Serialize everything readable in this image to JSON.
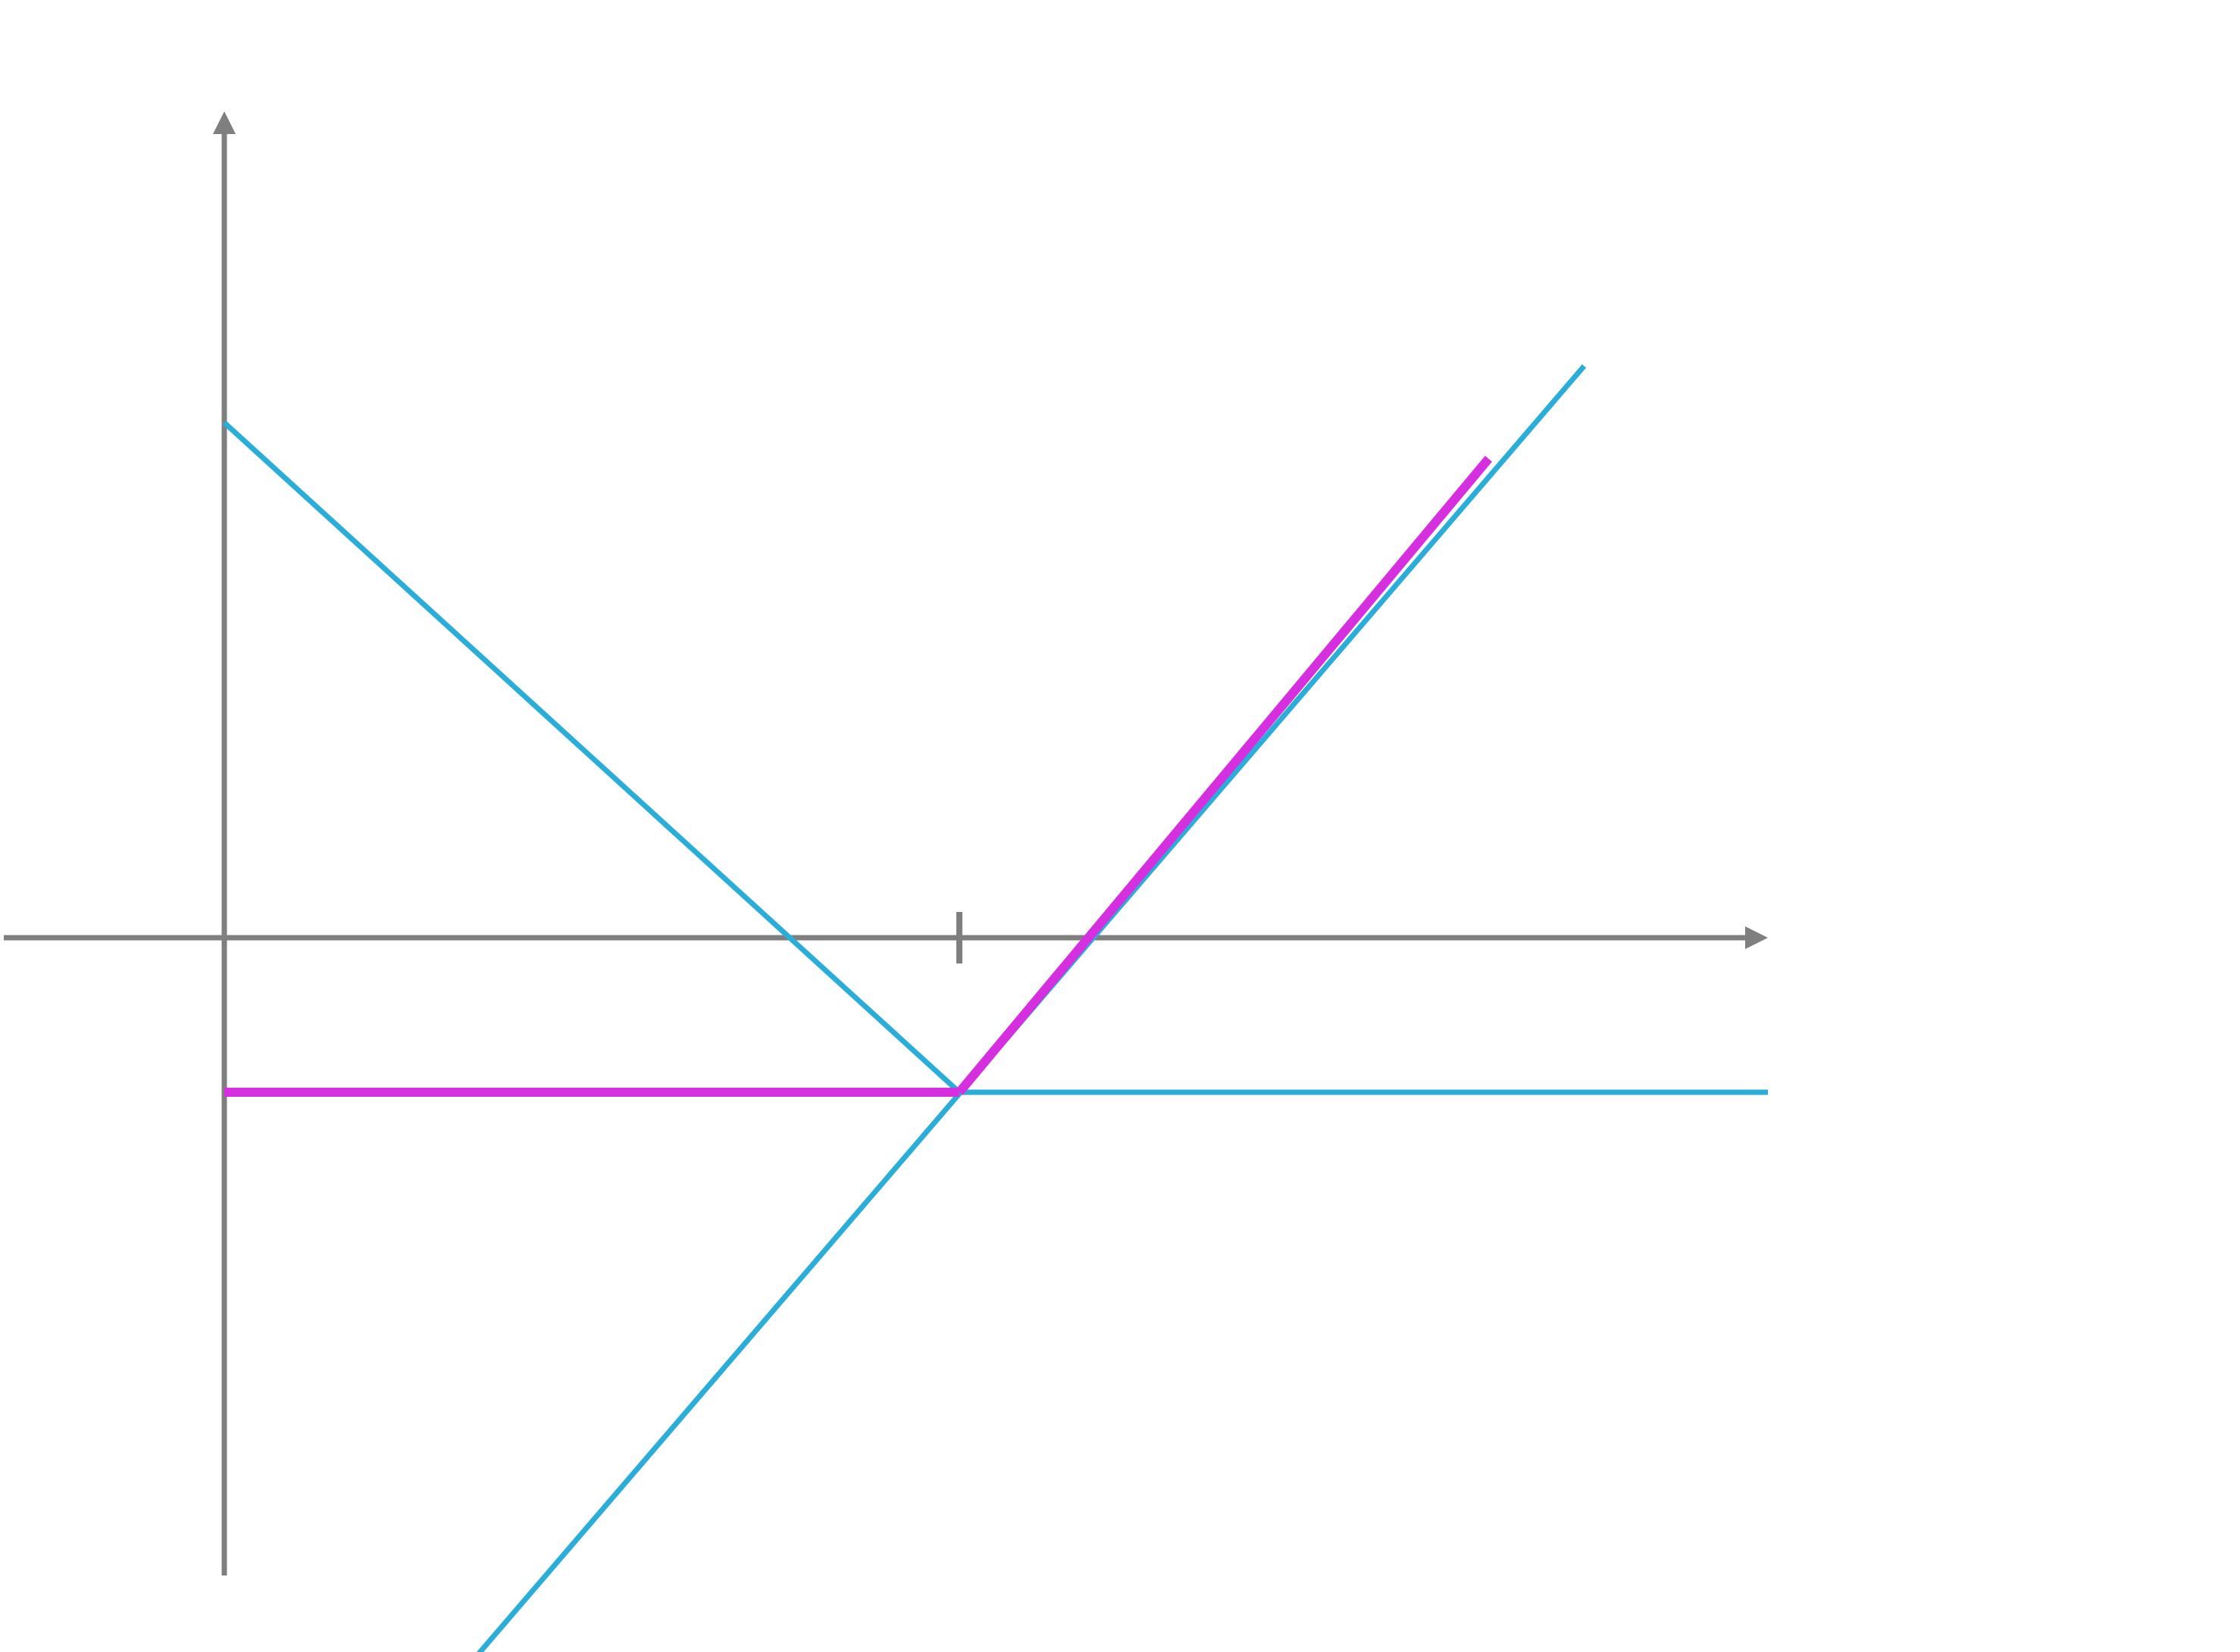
{
  "colors": {
    "axis": "#7f7f7f",
    "blue": "#2aaed9",
    "magenta": "#d62fe0",
    "background": "#ffffff"
  },
  "chart_data": {
    "type": "line",
    "x_tick_marks": [
      1
    ],
    "series": [
      {
        "kind": "line",
        "color": "blue",
        "x": [
          0,
          1.0
        ],
        "y": [
          1.0,
          -0.3
        ],
        "note_hidden": ""
      },
      {
        "kind": "line",
        "color": "blue",
        "x": [
          0.34,
          1.85
        ],
        "y": [
          -1.4,
          1.11
        ]
      },
      {
        "kind": "line",
        "color": "blue",
        "x": [
          1.0,
          2.1
        ],
        "y": [
          -0.3,
          -0.3
        ]
      },
      {
        "kind": "line",
        "color": "magenta",
        "emphasis": true,
        "x": [
          0,
          1.0
        ],
        "y": [
          -0.3,
          -0.3
        ]
      },
      {
        "kind": "line",
        "color": "magenta",
        "emphasis": true,
        "x": [
          1.0,
          1.72
        ],
        "y": [
          -0.3,
          0.93
        ]
      }
    ]
  }
}
